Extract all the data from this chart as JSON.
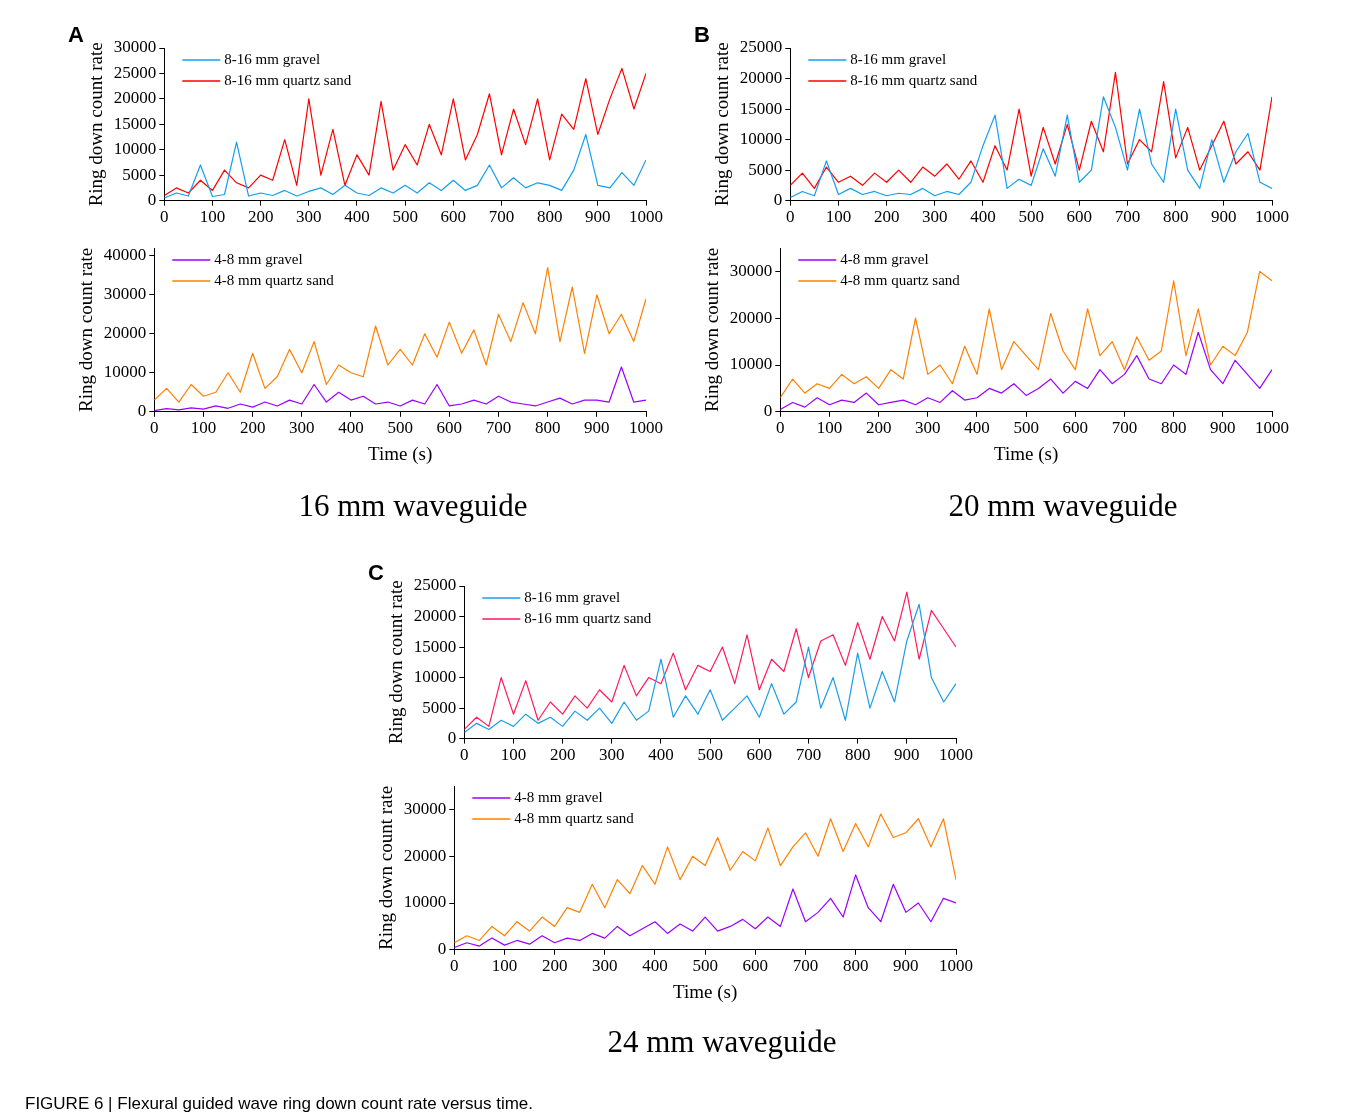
{
  "chart_data": [
    {
      "type": "line",
      "title": "A",
      "ylabel": "Ring down count rate",
      "xlim": [
        0,
        1000
      ],
      "xticks": [
        0,
        100,
        200,
        300,
        400,
        500,
        600,
        700,
        800,
        900,
        1000
      ],
      "ylim": [
        0,
        30000
      ],
      "yticks": [
        0,
        5000,
        10000,
        15000,
        20000,
        25000,
        30000
      ],
      "grid": false,
      "legend": "top left",
      "x": [
        0,
        25,
        50,
        75,
        100,
        125,
        150,
        175,
        200,
        225,
        250,
        275,
        300,
        325,
        350,
        375,
        400,
        425,
        450,
        475,
        500,
        525,
        550,
        575,
        600,
        625,
        650,
        675,
        700,
        725,
        750,
        775,
        800,
        825,
        850,
        875,
        900,
        925,
        950,
        975,
        1000
      ],
      "series": [
        {
          "name": "8-16 mm gravel",
          "color": "#139ff0",
          "values": [
            500,
            1500,
            900,
            7000,
            800,
            1200,
            11500,
            900,
            1500,
            1000,
            2000,
            900,
            1800,
            2500,
            1200,
            3000,
            1500,
            1000,
            2500,
            1500,
            3000,
            1500,
            3500,
            2000,
            4000,
            2000,
            3000,
            7000,
            2500,
            4500,
            2500,
            3500,
            3000,
            2000,
            6000,
            13000,
            3000,
            2500,
            5500,
            3000,
            8000
          ]
        },
        {
          "name": "8-16 mm quartz sand",
          "color": "#ff0000",
          "values": [
            1000,
            2500,
            1500,
            4000,
            2000,
            6000,
            3500,
            2500,
            5000,
            4000,
            12000,
            3000,
            20000,
            5000,
            14000,
            3000,
            9000,
            5000,
            19500,
            6000,
            11000,
            7000,
            15000,
            9000,
            20000,
            8000,
            13000,
            21000,
            9000,
            18000,
            11000,
            20000,
            8000,
            17000,
            14000,
            24000,
            13000,
            20000,
            26000,
            18000,
            25000
          ]
        }
      ]
    },
    {
      "type": "line",
      "xlabel": "Time (s)",
      "ylabel": "Ring down count rate",
      "xlim": [
        0,
        1000
      ],
      "xticks": [
        0,
        100,
        200,
        300,
        400,
        500,
        600,
        700,
        800,
        900,
        1000
      ],
      "ylim": [
        0,
        42000
      ],
      "yticks": [
        0,
        10000,
        20000,
        30000,
        40000
      ],
      "grid": false,
      "legend": "top left",
      "annotations": [
        "16 mm waveguide"
      ],
      "x": [
        0,
        25,
        50,
        75,
        100,
        125,
        150,
        175,
        200,
        225,
        250,
        275,
        300,
        325,
        350,
        375,
        400,
        425,
        450,
        475,
        500,
        525,
        550,
        575,
        600,
        625,
        650,
        675,
        700,
        725,
        750,
        775,
        800,
        825,
        850,
        875,
        900,
        925,
        950,
        975,
        1000
      ],
      "series": [
        {
          "name": "4-8 mm gravel",
          "color": "#9a00ff",
          "values": [
            300,
            800,
            500,
            1000,
            700,
            1500,
            900,
            2000,
            1200,
            2500,
            1500,
            3000,
            2000,
            7000,
            2500,
            5000,
            3000,
            4000,
            2000,
            2500,
            1500,
            3000,
            2000,
            7000,
            1500,
            2000,
            3000,
            2000,
            4000,
            2500,
            2000,
            1500,
            2500,
            3500,
            2000,
            3000,
            3000,
            2500,
            11500,
            2500,
            3000
          ]
        },
        {
          "name": "4-8 mm quartz sand",
          "color": "#ff8000",
          "values": [
            3000,
            6000,
            2500,
            7000,
            4000,
            5000,
            10000,
            5000,
            15000,
            6000,
            9000,
            16000,
            10000,
            18000,
            7000,
            12000,
            10000,
            9000,
            22000,
            12000,
            16000,
            12000,
            20000,
            14000,
            23000,
            15000,
            21000,
            12000,
            25000,
            18000,
            28000,
            20000,
            37000,
            18000,
            32000,
            15000,
            30000,
            20000,
            25000,
            18000,
            29000
          ]
        }
      ]
    },
    {
      "type": "line",
      "title": "B",
      "ylabel": "Ring down count rate",
      "xlim": [
        0,
        1000
      ],
      "xticks": [
        0,
        100,
        200,
        300,
        400,
        500,
        600,
        700,
        800,
        900,
        1000
      ],
      "ylim": [
        0,
        25000
      ],
      "yticks": [
        0,
        5000,
        10000,
        15000,
        20000,
        25000
      ],
      "grid": false,
      "legend": "top left",
      "x": [
        0,
        25,
        50,
        75,
        100,
        125,
        150,
        175,
        200,
        225,
        250,
        275,
        300,
        325,
        350,
        375,
        400,
        425,
        450,
        475,
        500,
        525,
        550,
        575,
        600,
        625,
        650,
        675,
        700,
        725,
        750,
        775,
        800,
        825,
        850,
        875,
        900,
        925,
        950,
        975,
        1000
      ],
      "series": [
        {
          "name": "8-16 mm gravel",
          "color": "#139ff0",
          "values": [
            500,
            1500,
            800,
            6500,
            1000,
            2000,
            1000,
            1500,
            800,
            1200,
            1000,
            2000,
            800,
            1500,
            1000,
            3000,
            9000,
            14000,
            2000,
            3500,
            2500,
            8500,
            4000,
            14000,
            3000,
            5000,
            17000,
            12000,
            5000,
            15000,
            6000,
            3000,
            15000,
            5000,
            2000,
            10000,
            3000,
            8000,
            11000,
            3000,
            2000
          ]
        },
        {
          "name": "8-16 mm quartz sand",
          "color": "#ff0000",
          "values": [
            2500,
            4500,
            2000,
            5500,
            3000,
            4000,
            2500,
            4500,
            3000,
            5000,
            3000,
            5500,
            4000,
            6000,
            3500,
            6500,
            3000,
            9000,
            5000,
            15000,
            4000,
            12000,
            6000,
            12500,
            5000,
            13000,
            8000,
            21000,
            6000,
            10000,
            8000,
            19500,
            7000,
            12000,
            5000,
            9000,
            13000,
            6000,
            8000,
            5000,
            17000
          ]
        }
      ]
    },
    {
      "type": "line",
      "xlabel": "Time (s)",
      "ylabel": "Ring down count rate",
      "xlim": [
        0,
        1000
      ],
      "xticks": [
        0,
        100,
        200,
        300,
        400,
        500,
        600,
        700,
        800,
        900,
        1000
      ],
      "ylim": [
        0,
        35000
      ],
      "yticks": [
        0,
        10000,
        20000,
        30000
      ],
      "grid": false,
      "legend": "top left",
      "annotations": [
        "20 mm waveguide"
      ],
      "x": [
        0,
        25,
        50,
        75,
        100,
        125,
        150,
        175,
        200,
        225,
        250,
        275,
        300,
        325,
        350,
        375,
        400,
        425,
        450,
        475,
        500,
        525,
        550,
        575,
        600,
        625,
        650,
        675,
        700,
        725,
        750,
        775,
        800,
        825,
        850,
        875,
        900,
        925,
        950,
        975,
        1000
      ],
      "series": [
        {
          "name": "4-8 mm gravel",
          "color": "#9a00ff",
          "values": [
            500,
            2000,
            1000,
            3000,
            1500,
            2500,
            2000,
            4000,
            1500,
            2000,
            2500,
            1500,
            3000,
            2000,
            4500,
            2500,
            3000,
            5000,
            4000,
            6000,
            3500,
            5000,
            7000,
            4000,
            6500,
            5000,
            9000,
            6000,
            8000,
            12000,
            7000,
            6000,
            10000,
            8000,
            17000,
            9000,
            6000,
            11000,
            8000,
            5000,
            9000
          ]
        },
        {
          "name": "4-8 mm quartz sand",
          "color": "#ff8000",
          "values": [
            3000,
            7000,
            4000,
            6000,
            5000,
            8000,
            6000,
            7500,
            5000,
            9000,
            7000,
            20000,
            8000,
            10000,
            6000,
            14000,
            8000,
            22000,
            9000,
            15000,
            12000,
            9000,
            21000,
            13000,
            9000,
            22000,
            12000,
            15000,
            9000,
            16000,
            11000,
            13000,
            28000,
            12000,
            22000,
            10000,
            14000,
            12000,
            17000,
            30000,
            28000
          ]
        }
      ]
    },
    {
      "type": "line",
      "title": "C",
      "ylabel": "Ring down count rate",
      "xlim": [
        0,
        1000
      ],
      "xticks": [
        0,
        100,
        200,
        300,
        400,
        500,
        600,
        700,
        800,
        900,
        1000
      ],
      "ylim": [
        0,
        25000
      ],
      "yticks": [
        0,
        5000,
        10000,
        15000,
        20000,
        25000
      ],
      "grid": false,
      "legend": "top left",
      "x": [
        0,
        25,
        50,
        75,
        100,
        125,
        150,
        175,
        200,
        225,
        250,
        275,
        300,
        325,
        350,
        375,
        400,
        425,
        450,
        475,
        500,
        525,
        550,
        575,
        600,
        625,
        650,
        675,
        700,
        725,
        750,
        775,
        800,
        825,
        850,
        875,
        900,
        925,
        950,
        975,
        1000
      ],
      "series": [
        {
          "name": "8-16 mm gravel",
          "color": "#1a9ee8",
          "values": [
            1000,
            2500,
            1500,
            3000,
            2000,
            4000,
            2500,
            3500,
            2000,
            4500,
            3000,
            5000,
            2500,
            6000,
            3000,
            4500,
            13000,
            3500,
            7000,
            4000,
            8000,
            3000,
            5000,
            7000,
            3500,
            9000,
            4000,
            6000,
            15000,
            5000,
            10000,
            3000,
            14000,
            5000,
            11000,
            6000,
            16000,
            22000,
            10000,
            6000,
            9000
          ]
        },
        {
          "name": "8-16 mm quartz sand",
          "color": "#ff1a5e",
          "values": [
            1500,
            3500,
            2000,
            10000,
            4000,
            9500,
            3000,
            6000,
            4000,
            7000,
            5000,
            8000,
            6000,
            12000,
            7000,
            10000,
            9000,
            14000,
            8000,
            12000,
            11000,
            15000,
            9000,
            17000,
            8000,
            13000,
            11000,
            18000,
            10000,
            16000,
            17000,
            12000,
            19000,
            13000,
            20000,
            16000,
            24000,
            13000,
            21000,
            18000,
            15000
          ]
        }
      ]
    },
    {
      "type": "line",
      "xlabel": "Time (s)",
      "ylabel": "Ring down count rate",
      "xlim": [
        0,
        1000
      ],
      "xticks": [
        0,
        100,
        200,
        300,
        400,
        500,
        600,
        700,
        800,
        900,
        1000
      ],
      "ylim": [
        0,
        35000
      ],
      "yticks": [
        0,
        10000,
        20000,
        30000
      ],
      "grid": false,
      "legend": "top left",
      "annotations": [
        "24 mm waveguide",
        "FIGURE 6 | Flexural guided wave ring down count rate versus time."
      ],
      "x": [
        0,
        25,
        50,
        75,
        100,
        125,
        150,
        175,
        200,
        225,
        250,
        275,
        300,
        325,
        350,
        375,
        400,
        425,
        450,
        475,
        500,
        525,
        550,
        575,
        600,
        625,
        650,
        675,
        700,
        725,
        750,
        775,
        800,
        825,
        850,
        875,
        900,
        925,
        950,
        975,
        1000
      ],
      "series": [
        {
          "name": "4-8 mm gravel",
          "color": "#9a00ff",
          "values": [
            500,
            1500,
            800,
            2500,
            1000,
            2000,
            1200,
            3000,
            1500,
            2500,
            2000,
            3500,
            2500,
            5000,
            3000,
            4500,
            6000,
            3500,
            5500,
            4000,
            7000,
            4000,
            5000,
            6500,
            4500,
            7000,
            5000,
            13000,
            6000,
            8000,
            11000,
            7000,
            16000,
            9000,
            6000,
            14000,
            8000,
            10000,
            6000,
            11000,
            10000
          ]
        },
        {
          "name": "4-8 mm quartz sand",
          "color": "#ff8000",
          "values": [
            1500,
            3000,
            2000,
            5000,
            3000,
            6000,
            4000,
            7000,
            5000,
            9000,
            8000,
            14000,
            9000,
            15000,
            12000,
            18000,
            14000,
            22000,
            15000,
            20000,
            18000,
            24000,
            17000,
            21000,
            19000,
            26000,
            18000,
            22000,
            25000,
            20000,
            28000,
            21000,
            27000,
            22000,
            29000,
            24000,
            25000,
            28000,
            22000,
            28000,
            15000
          ]
        }
      ]
    }
  ]
}
